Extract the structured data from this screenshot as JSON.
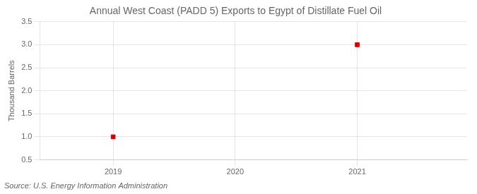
{
  "chart_data": {
    "type": "scatter",
    "title": "Annual West Coast (PADD 5) Exports to Egypt of Distillate Fuel Oil",
    "ylabel": "Thousand Barrels",
    "annotations": [
      "Source: U.S. Energy Information Administration"
    ],
    "x": [
      2019,
      2021
    ],
    "values": [
      1.0,
      3.0
    ],
    "color": "#cc0000",
    "marker": "square",
    "xlim": [
      2018.4,
      2021.9
    ],
    "xticks": [
      2019,
      2020,
      2021
    ],
    "ylim": [
      0.5,
      3.5
    ],
    "yticks": [
      0.5,
      {
        "value": 1.0,
        "label": "1.0"
      },
      1.5,
      {
        "value": 2.0,
        "label": "2.0"
      },
      2.5,
      {
        "value": 3.0,
        "label": "3.0"
      },
      3.5
    ],
    "grid": true
  }
}
